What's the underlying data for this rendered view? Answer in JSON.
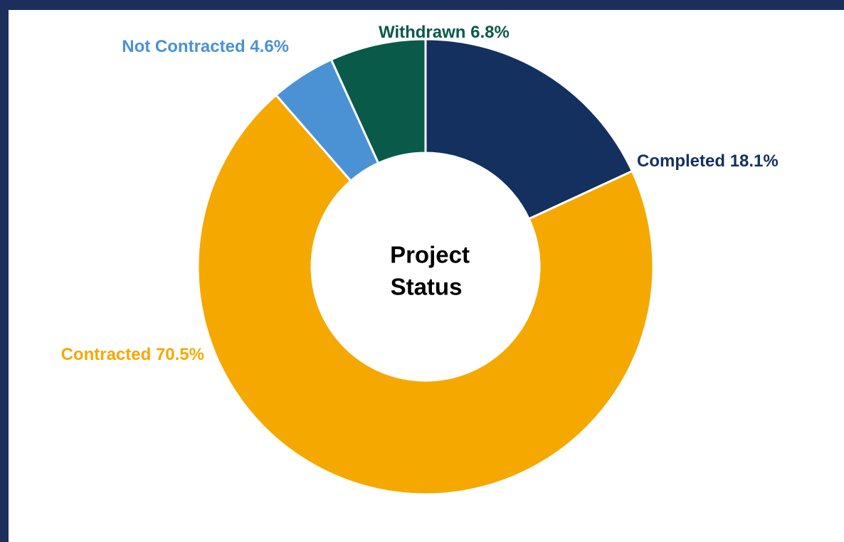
{
  "chart_data": {
    "type": "donut",
    "center_text": [
      "Project",
      "Status"
    ],
    "categories": [
      "Completed",
      "Contracted",
      "Not Contracted",
      "Withdrawn"
    ],
    "values": [
      18.1,
      70.5,
      4.6,
      6.8
    ],
    "value_labels": [
      "18.1%",
      "70.5%",
      "4.6%",
      "6.8%"
    ],
    "colors": [
      "#13305f",
      "#f5a800",
      "#4a92d4",
      "#0a5a4a"
    ]
  }
}
